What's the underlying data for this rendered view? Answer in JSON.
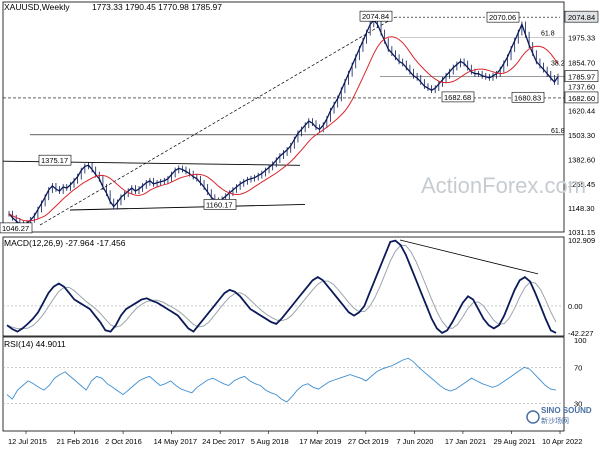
{
  "header": {
    "symbol": "XAUUSD,Weekly",
    "ohlc": "1773.33 1790.45 1770.98 1785.97",
    "macd_label": "MACD(12,26,9) -27.964 -17.456",
    "rsi_label": "RSI(14) 44.9011"
  },
  "watermark": "ActionForex.com",
  "branding": {
    "line1": "SINO SOUND",
    "line2": "新沙场网"
  },
  "colors": {
    "candle": "#0b1a59",
    "ma": "#d9262b",
    "macd": "#0b1a59",
    "signal": "#9aa6ad",
    "rsi": "#3f8fd0",
    "grid": "#000000",
    "background": "#ffffff"
  },
  "chart_data": {
    "type": "candlestick",
    "x_labels": [
      "12 Jul 2015",
      "21 Feb 2016",
      "2 Oct 2016",
      "14 May 2017",
      "24 Dec 2017",
      "5 Aug 2018",
      "17 Mar 2019",
      "27 Oct 2019",
      "7 Jun 2020",
      "17 Jan 2021",
      "29 Aug 2021",
      "10 Apr 2022"
    ],
    "price_axis": {
      "ticks": [
        "2074.84",
        "1975.33",
        "1854.70",
        "1785.97",
        "1737.60",
        "1682.60",
        "1620.44",
        "1503.30",
        "1382.60",
        "1265.45",
        "1148.30",
        "1031.15"
      ],
      "range": [
        1031.15,
        2100
      ]
    },
    "price_close": [
      1120,
      1100,
      1085,
      1070,
      1060,
      1075,
      1090,
      1110,
      1140,
      1170,
      1200,
      1235,
      1255,
      1240,
      1230,
      1250,
      1245,
      1260,
      1280,
      1300,
      1330,
      1350,
      1355,
      1335,
      1310,
      1290,
      1250,
      1220,
      1180,
      1155,
      1175,
      1200,
      1215,
      1230,
      1245,
      1230,
      1240,
      1255,
      1270,
      1280,
      1265,
      1270,
      1275,
      1280,
      1290,
      1310,
      1330,
      1340,
      1335,
      1325,
      1315,
      1300,
      1290,
      1270,
      1250,
      1225,
      1200,
      1185,
      1175,
      1190,
      1205,
      1220,
      1235,
      1250,
      1265,
      1275,
      1285,
      1290,
      1295,
      1305,
      1315,
      1330,
      1345,
      1360,
      1380,
      1400,
      1415,
      1430,
      1450,
      1480,
      1510,
      1530,
      1550,
      1570,
      1560,
      1540,
      1530,
      1550,
      1580,
      1620,
      1650,
      1680,
      1720,
      1760,
      1800,
      1840,
      1880,
      1920,
      1960,
      2000,
      2040,
      2060,
      2040,
      2000,
      1960,
      1920,
      1900,
      1880,
      1860,
      1850,
      1830,
      1810,
      1790,
      1780,
      1760,
      1740,
      1730,
      1720,
      1730,
      1750,
      1770,
      1790,
      1810,
      1830,
      1845,
      1860,
      1850,
      1830,
      1810,
      1800,
      1800,
      1790,
      1785,
      1780,
      1790,
      1800,
      1820,
      1850,
      1880,
      1920,
      1960,
      2000,
      2040,
      1990,
      1940,
      1900,
      1860,
      1840,
      1820,
      1800,
      1780,
      1760,
      1785.97
    ],
    "levels": [
      {
        "label": "2074.84",
        "value": 2074.84
      },
      {
        "label": "2070.06",
        "value": 2070.06
      },
      {
        "label": "1375.17",
        "value": 1375.17
      },
      {
        "label": "1160.17",
        "value": 1160.17
      },
      {
        "label": "1682.68",
        "value": 1682.68
      },
      {
        "label": "1680.83",
        "value": 1680.83
      },
      {
        "label": "1046.27",
        "value": 1046.27
      }
    ],
    "fib_labels": [
      "61.8",
      "38.2",
      "61.8"
    ],
    "macd": {
      "ticks": [
        "102.909",
        "0.00",
        "-42.227"
      ],
      "range": [
        -42.227,
        102.909
      ],
      "values": [
        -30,
        -36,
        -40,
        -35,
        -28,
        -20,
        -10,
        5,
        20,
        30,
        35,
        30,
        20,
        10,
        5,
        0,
        -5,
        -15,
        -25,
        -38,
        -40,
        -30,
        -15,
        -5,
        0,
        5,
        10,
        12,
        8,
        5,
        0,
        -5,
        -10,
        -15,
        -25,
        -35,
        -40,
        -30,
        -20,
        -10,
        0,
        10,
        20,
        25,
        22,
        15,
        5,
        -5,
        -10,
        -15,
        -20,
        -25,
        -28,
        -20,
        -10,
        0,
        10,
        20,
        30,
        40,
        45,
        40,
        30,
        20,
        10,
        0,
        -10,
        -15,
        -10,
        0,
        20,
        40,
        60,
        80,
        100,
        102,
        95,
        80,
        60,
        40,
        20,
        0,
        -20,
        -35,
        -42,
        -38,
        -25,
        -10,
        5,
        15,
        10,
        -5,
        -20,
        -30,
        -35,
        -30,
        -15,
        5,
        25,
        40,
        45,
        38,
        20,
        0,
        -20,
        -38,
        -42
      ]
    },
    "rsi": {
      "ticks": [
        "100",
        "70",
        "30"
      ],
      "range": [
        0,
        100
      ],
      "values": [
        40,
        35,
        45,
        50,
        55,
        52,
        48,
        45,
        50,
        58,
        62,
        65,
        60,
        55,
        50,
        45,
        55,
        60,
        58,
        52,
        48,
        44,
        40,
        45,
        50,
        55,
        58,
        60,
        55,
        50,
        52,
        55,
        50,
        46,
        44,
        42,
        48,
        52,
        56,
        58,
        55,
        52,
        50,
        55,
        58,
        60,
        55,
        52,
        50,
        45,
        42,
        40,
        35,
        32,
        38,
        45,
        50,
        52,
        48,
        46,
        50,
        54,
        56,
        58,
        60,
        62,
        60,
        58,
        55,
        60,
        65,
        68,
        70,
        72,
        75,
        78,
        80,
        76,
        70,
        65,
        60,
        55,
        50,
        46,
        44,
        46,
        50,
        54,
        58,
        55,
        52,
        50,
        48,
        50,
        54,
        58,
        62,
        66,
        70,
        68,
        62,
        56,
        50,
        46,
        44.9
      ]
    }
  }
}
